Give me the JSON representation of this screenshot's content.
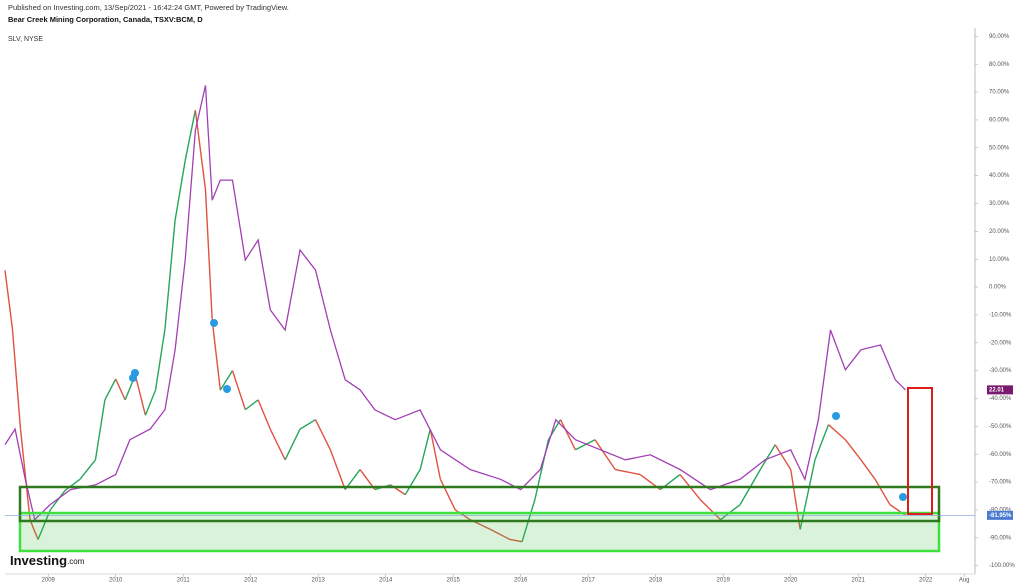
{
  "header": {
    "published": "Published on Investing.com, 13/Sep/2021 - 16:42:24 GMT, Powered by TradingView."
  },
  "logo": {
    "name": "Investing",
    "suffix": ".com"
  },
  "chart_data": {
    "type": "line",
    "title": "Bear Creek Mining Corporation, Canada, TSXV:BCM, D",
    "xlim": [
      2008.36,
      2022.73
    ],
    "xticks": [
      2009,
      2010,
      2011,
      2012,
      2013,
      2014,
      2015,
      2016,
      2017,
      2018,
      2019,
      2020,
      2021,
      2022,
      {
        "value": 2022.57,
        "label": "Aug"
      }
    ],
    "ylim": [
      -103,
      93
    ],
    "yticks": [
      {
        "value": 90,
        "label": "90.00%"
      },
      {
        "value": 80,
        "label": "80.00%"
      },
      {
        "value": 70,
        "label": "70.00%"
      },
      {
        "value": 60,
        "label": "60.00%"
      },
      {
        "value": 50,
        "label": "50.00%"
      },
      {
        "value": 40,
        "label": "40.00%"
      },
      {
        "value": 30,
        "label": "30.00%"
      },
      {
        "value": 20,
        "label": "20.00%"
      },
      {
        "value": 10,
        "label": "10.00%"
      },
      {
        "value": 0,
        "label": "0.00%"
      },
      {
        "value": -10,
        "label": "-10.00%"
      },
      {
        "value": -20,
        "label": "-20.00%"
      },
      {
        "value": -30,
        "label": "-30.00%"
      },
      {
        "value": -40,
        "label": "-40.00%"
      },
      {
        "value": -50,
        "label": "-50.00%"
      },
      {
        "value": -60,
        "label": "-60.00%"
      },
      {
        "value": -70,
        "label": "-70.00%"
      },
      {
        "value": -80,
        "label": "-80.00%"
      },
      {
        "value": -90,
        "label": "-90.00%"
      },
      {
        "value": -100,
        "label": "-100.00%"
      }
    ],
    "series": [
      {
        "color": "#26a65b",
        "down_color": "#e0533f",
        "label_color": "#4a7bd0",
        "last_label": "-81.95%",
        "x": [
          2008.36,
          2008.47,
          2008.59,
          2008.73,
          2008.85,
          2009.03,
          2009.25,
          2009.47,
          2009.7,
          2009.84,
          2010.0,
          2010.14,
          2010.29,
          2010.44,
          2010.59,
          2010.73,
          2010.88,
          2011.03,
          2011.18,
          2011.33,
          2011.43,
          2011.55,
          2011.73,
          2011.92,
          2012.11,
          2012.29,
          2012.51,
          2012.73,
          2012.96,
          2013.18,
          2013.4,
          2013.62,
          2013.84,
          2014.07,
          2014.29,
          2014.51,
          2014.66,
          2014.81,
          2015.03,
          2015.25,
          2015.55,
          2015.84,
          2016.02,
          2016.21,
          2016.41,
          2016.59,
          2016.81,
          2017.1,
          2017.4,
          2017.77,
          2018.07,
          2018.36,
          2018.66,
          2018.96,
          2019.25,
          2019.55,
          2019.77,
          2020.0,
          2020.14,
          2020.36,
          2020.56,
          2020.81,
          2021.04,
          2021.25,
          2021.47,
          2021.7
        ],
        "values": [
          6,
          -15,
          -51,
          -83.5,
          -90.6,
          -80,
          -73,
          -69,
          -62,
          -40.5,
          -33,
          -40.5,
          -31.5,
          -46,
          -37,
          -15,
          24,
          45.5,
          63.5,
          35,
          -12,
          -37,
          -30,
          -44,
          -40.5,
          -51,
          -62,
          -51,
          -47.6,
          -58.4,
          -72.7,
          -65.5,
          -72.7,
          -71,
          -74.5,
          -65.5,
          -51,
          -69,
          -80,
          -83.5,
          -87,
          -90.6,
          -91.4,
          -76.3,
          -54.8,
          -47.6,
          -58.4,
          -54.8,
          -65.5,
          -67.3,
          -72.7,
          -67.3,
          -76.3,
          -83.5,
          -78.1,
          -65.5,
          -56.6,
          -65.5,
          -87,
          -62,
          -49.4,
          -54.8,
          -62,
          -69,
          -78.1,
          -81.95
        ]
      },
      {
        "name": "SLV, NYSE",
        "color": "#a33fb5",
        "label_color": "#7a1a6e",
        "last_label": "22.01",
        "x": [
          2008.36,
          2008.51,
          2008.66,
          2008.8,
          2009.03,
          2009.33,
          2009.7,
          2010.0,
          2010.21,
          2010.51,
          2010.73,
          2010.88,
          2011.03,
          2011.18,
          2011.33,
          2011.43,
          2011.55,
          2011.73,
          2011.92,
          2012.11,
          2012.29,
          2012.51,
          2012.73,
          2012.96,
          2013.18,
          2013.4,
          2013.62,
          2013.84,
          2014.14,
          2014.51,
          2014.81,
          2015.25,
          2015.7,
          2016.0,
          2016.29,
          2016.52,
          2016.81,
          2017.18,
          2017.55,
          2017.92,
          2018.36,
          2018.81,
          2019.25,
          2019.62,
          2020.0,
          2020.21,
          2020.41,
          2020.59,
          2020.81,
          2021.04,
          2021.33,
          2021.55,
          2021.7
        ],
        "values": [
          -56.6,
          -51,
          -69,
          -83.5,
          -78.1,
          -72.7,
          -71,
          -67.3,
          -54.8,
          -51,
          -44,
          -22.5,
          9.7,
          56.3,
          72.4,
          31.2,
          38.4,
          38.4,
          9.7,
          16.9,
          -8.2,
          -15.4,
          13.3,
          6.1,
          -15.4,
          -33.3,
          -36.9,
          -44.1,
          -47.6,
          -44.1,
          -58.4,
          -65.5,
          -69,
          -72.7,
          -65.5,
          -47.6,
          -54.8,
          -58.4,
          -62,
          -60.2,
          -65.5,
          -72.7,
          -69,
          -62,
          -58.4,
          -69,
          -47.6,
          -15.4,
          -29.7,
          -22.5,
          -20.8,
          -33.3,
          -36.9
        ]
      }
    ]
  }
}
